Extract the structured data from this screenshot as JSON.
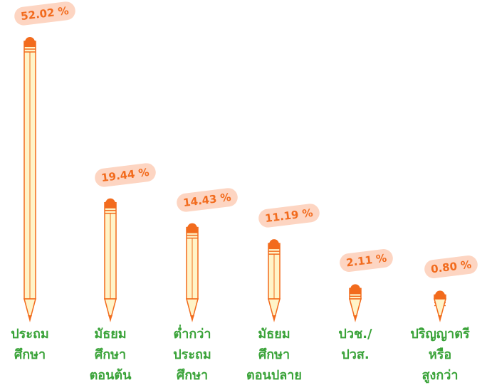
{
  "chart_data": {
    "type": "pencil-bar",
    "categories": [
      "ประถม\nศึกษา",
      "มัธยม\nศึกษา\nตอนต้น",
      "ต่ำกว่า\nประถม\nศึกษา",
      "มัธยม\nศึกษา\nตอนปลาย",
      "ปวช./\nปวส.",
      "ปริญญาตรี\nหรือ\nสูงกว่า"
    ],
    "values": [
      52.02,
      19.44,
      14.43,
      11.19,
      2.11,
      0.8
    ],
    "value_labels": [
      "52.02 %",
      "19.44 %",
      "14.43 %",
      "11.19 %",
      "2.11 %",
      "0.80 %"
    ],
    "color": "#f26b1d",
    "body_color": "#fff4c8",
    "label_color": "#3aa339",
    "bubble_color": "#fdd5c2"
  }
}
